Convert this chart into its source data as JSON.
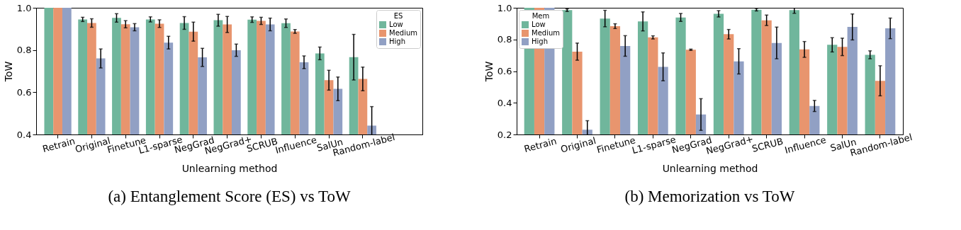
{
  "chart_data": [
    {
      "type": "bar",
      "title": "(a) Entanglement Score (ES) vs ToW",
      "xlabel": "Unlearning method",
      "ylabel": "ToW",
      "legend_title": "ES",
      "legend": "top right",
      "categories": [
        "Retrain",
        "Original",
        "Finetune",
        "L1-sparse",
        "NegGrad",
        "NegGrad+",
        "SCRUB",
        "Influence",
        "SalUn",
        "Random-label"
      ],
      "ylim": [
        0.4,
        1.0
      ],
      "yticks": [
        {
          "value": 0.4,
          "label": "0.4"
        },
        {
          "value": 0.6,
          "label": "0.6"
        },
        {
          "value": 0.8,
          "label": "0.8"
        },
        {
          "value": 1.0,
          "label": "1.0"
        }
      ],
      "series": [
        {
          "name": "Low",
          "color": "#70b69c",
          "values": [
            1.0,
            0.945,
            0.952,
            0.945,
            0.928,
            0.941,
            0.944,
            0.927,
            0.784,
            0.766
          ],
          "errors": [
            null,
            0.01,
            0.02,
            0.012,
            0.03,
            0.028,
            0.013,
            0.02,
            0.03,
            0.108
          ]
        },
        {
          "name": "Medium",
          "color": "#e8956e",
          "values": [
            1.0,
            0.928,
            0.922,
            0.925,
            0.887,
            0.921,
            0.938,
            0.888,
            0.657,
            0.663
          ],
          "errors": [
            null,
            0.02,
            0.017,
            0.018,
            0.045,
            0.038,
            0.017,
            0.009,
            0.047,
            0.056
          ]
        },
        {
          "name": "High",
          "color": "#91a0c4",
          "values": [
            1.0,
            0.76,
            0.908,
            0.835,
            0.765,
            0.799,
            0.921,
            0.742,
            0.616,
            0.442
          ],
          "errors": [
            null,
            0.045,
            0.017,
            0.03,
            0.043,
            0.029,
            0.03,
            0.03,
            0.056,
            0.09
          ]
        }
      ]
    },
    {
      "type": "bar",
      "title": "(b) Memorization vs ToW",
      "xlabel": "Unlearning method",
      "ylabel": "ToW",
      "legend_title": "Mem",
      "legend": "top left",
      "categories": [
        "Retrain",
        "Original",
        "Finetune",
        "L1-sparse",
        "NegGrad",
        "NegGrad+",
        "SCRUB",
        "Influence",
        "SalUn",
        "Random-label"
      ],
      "ylim": [
        0.2,
        1.0
      ],
      "yticks": [
        {
          "value": 0.2,
          "label": "0.2"
        },
        {
          "value": 0.4,
          "label": "0.4"
        },
        {
          "value": 0.6,
          "label": "0.6"
        },
        {
          "value": 0.8,
          "label": "0.8"
        },
        {
          "value": 1.0,
          "label": "1.0"
        }
      ],
      "series": [
        {
          "name": "Low",
          "color": "#70b69c",
          "values": [
            1.0,
            0.985,
            0.932,
            0.914,
            0.939,
            0.962,
            0.988,
            0.985,
            0.766,
            0.703
          ],
          "errors": [
            null,
            0.008,
            0.052,
            0.06,
            0.025,
            0.02,
            0.008,
            0.02,
            0.045,
            0.025
          ]
        },
        {
          "name": "Medium",
          "color": "#e8956e",
          "values": [
            1.0,
            0.723,
            0.884,
            0.813,
            0.735,
            0.833,
            0.921,
            0.737,
            0.753,
            0.539
          ],
          "errors": [
            null,
            0.054,
            0.015,
            0.01,
            0.004,
            0.03,
            0.033,
            0.05,
            0.055,
            0.095
          ]
        },
        {
          "name": "High",
          "color": "#91a0c4",
          "values": [
            1.0,
            0.23,
            0.759,
            0.627,
            0.326,
            0.662,
            0.778,
            0.38,
            0.879,
            0.87
          ],
          "errors": [
            null,
            0.057,
            0.065,
            0.088,
            0.1,
            0.08,
            0.1,
            0.035,
            0.082,
            0.065
          ]
        }
      ]
    }
  ]
}
